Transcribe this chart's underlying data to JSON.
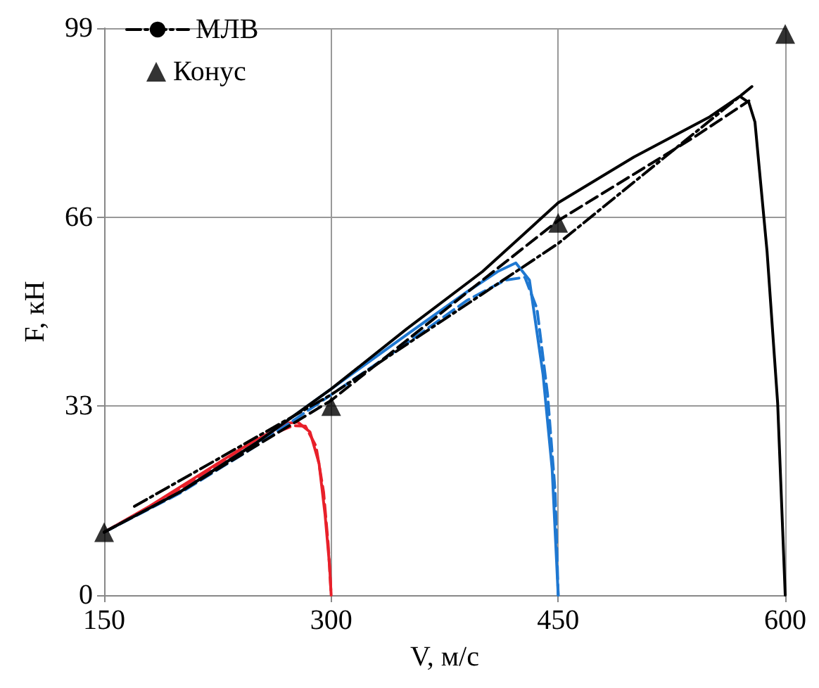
{
  "chart_data": {
    "type": "line",
    "xlabel": "V, м/с",
    "ylabel": "F, кН",
    "xlim": [
      150,
      600
    ],
    "xticks": [
      150,
      300,
      450,
      600
    ],
    "ylim": [
      0,
      99
    ],
    "yticks": [
      0,
      33,
      66,
      99
    ],
    "grid": true,
    "legend": "top left",
    "marker": "none",
    "series": [
      {
        "color": "#e8202a",
        "line_style": "solid",
        "x": [
          150,
          180,
          210,
          240,
          260,
          270,
          278,
          286,
          292,
          296,
          299,
          300
        ],
        "values": [
          11,
          15.5,
          20.5,
          25.5,
          28.5,
          30,
          30.2,
          28.5,
          23,
          14,
          5,
          0
        ]
      },
      {
        "color": "#e8202a",
        "line_style": "dashed",
        "x": [
          150,
          180,
          210,
          240,
          260,
          275,
          283,
          290,
          295,
          298,
          300
        ],
        "values": [
          11,
          15.3,
          20.2,
          25,
          28,
          29.6,
          29.5,
          26,
          18,
          9,
          0
        ]
      },
      {
        "color": "#1f78d1",
        "line_style": "solid",
        "x": [
          150,
          200,
          250,
          300,
          350,
          390,
          410,
          422,
          431,
          440,
          446,
          450
        ],
        "values": [
          11,
          18,
          26.5,
          36,
          45.5,
          53,
          56.5,
          58,
          55,
          38.5,
          22,
          0
        ]
      },
      {
        "color": "#1f78d1",
        "line_style": "dashed",
        "x": [
          150,
          200,
          250,
          300,
          350,
          390,
          415,
          428,
          436,
          443,
          448,
          450
        ],
        "values": [
          11,
          17.8,
          26,
          35,
          44,
          51.5,
          55,
          55.5,
          50,
          35,
          18,
          0
        ]
      },
      {
        "color": "#000000",
        "line_style": "solid",
        "x": [
          150,
          200,
          250,
          300,
          350,
          400,
          425,
          450,
          475,
          500,
          525,
          550,
          570,
          576,
          580,
          588,
          595,
          600
        ],
        "values": [
          11,
          18,
          26.5,
          36,
          46.5,
          56.5,
          62.5,
          68.5,
          72.5,
          76.5,
          80,
          83.5,
          87.1,
          86,
          82.6,
          60,
          33.5,
          0
        ]
      },
      {
        "color": "#000000",
        "line_style": "dashed",
        "x": [
          150,
          200,
          250,
          300,
          350,
          400,
          450,
          500,
          540,
          576
        ],
        "values": [
          11,
          18,
          26,
          34,
          44.5,
          55,
          65.4,
          73.5,
          80,
          86.3
        ]
      },
      {
        "name": "МЛВ",
        "color": "#000000",
        "line_style": "dashdot",
        "x": [
          170,
          300,
          450,
          578
        ],
        "values": [
          15.5,
          35,
          61.4,
          88.8
        ]
      },
      {
        "name": "Конус",
        "type": "scatter",
        "marker": "triangle",
        "color": "#000000",
        "x": [
          150,
          300,
          450,
          600
        ],
        "values": [
          11,
          33,
          65,
          98
        ]
      }
    ]
  }
}
